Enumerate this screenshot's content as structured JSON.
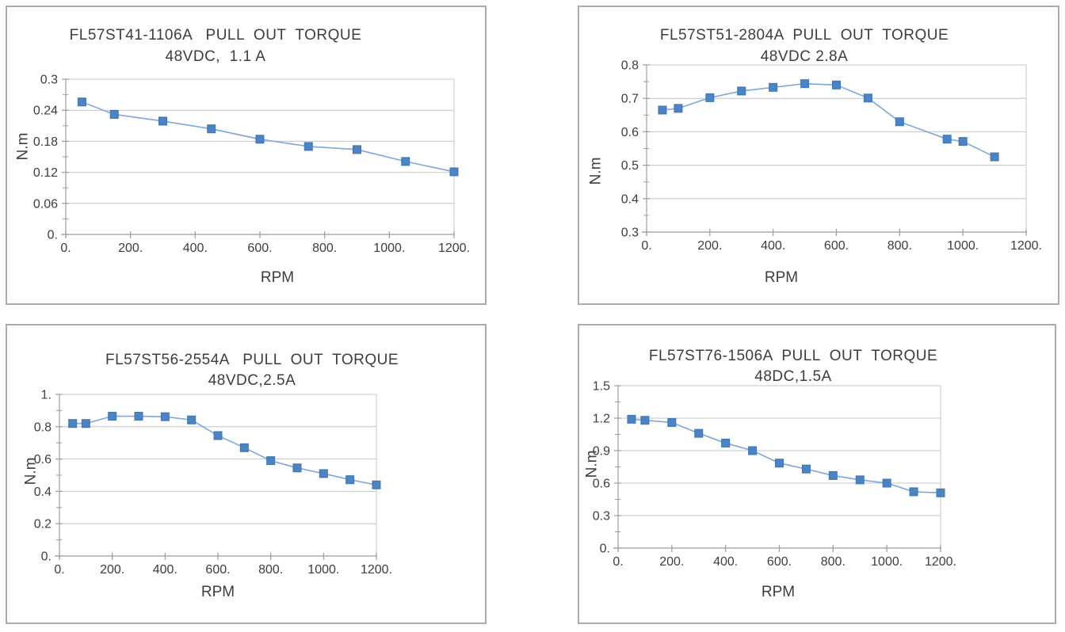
{
  "colors": {
    "line": "#7ca7d9",
    "marker_fill": "#4c83c3",
    "marker_edge": "#3f74b0",
    "grid": "#c4c4c4",
    "axis": "#9c9c9c",
    "text": "#3d3d3d",
    "panel_border": "#ababab",
    "background": "#ffffff"
  },
  "chart_data": [
    {
      "type": "line",
      "title_line1": "FL57ST41-1106A   PULL  OUT  TORQUE",
      "title_line2": "48VDC,  1.1 A",
      "xlabel": "RPM",
      "ylabel": "N.m",
      "xlim": [
        0,
        1200
      ],
      "ylim": [
        0,
        0.3
      ],
      "x_tick_values": [
        0,
        200,
        400,
        600,
        800,
        1000,
        1200
      ],
      "x_tick_labels": [
        "0.",
        "200.",
        "400.",
        "600.",
        "800.",
        "1000.",
        "1200."
      ],
      "y_tick_values": [
        0,
        0.06,
        0.12,
        0.18,
        0.24,
        0.3
      ],
      "y_tick_labels": [
        "0.",
        "0.06",
        "0.12",
        "0.18",
        "0.24",
        "0.3"
      ],
      "y_minor_step": 0.03,
      "x": [
        50,
        150,
        300,
        450,
        600,
        750,
        900,
        1050,
        1200
      ],
      "y": [
        0.256,
        0.232,
        0.219,
        0.204,
        0.184,
        0.17,
        0.164,
        0.141,
        0.121
      ],
      "marker": "square",
      "grid": "horizontal",
      "legend": "none"
    },
    {
      "type": "line",
      "title_line1": "FL57ST51-2804A  PULL  OUT  TORQUE",
      "title_line2": "48VDC 2.8A",
      "xlabel": "RPM",
      "ylabel": "N.m",
      "xlim": [
        0,
        1200
      ],
      "ylim": [
        0.3,
        0.8
      ],
      "x_tick_values": [
        0,
        200,
        400,
        600,
        800,
        1000,
        1200
      ],
      "x_tick_labels": [
        "0.",
        "200.",
        "400.",
        "600.",
        "800.",
        "1000.",
        "1200."
      ],
      "y_tick_values": [
        0.3,
        0.4,
        0.5,
        0.6,
        0.7,
        0.8
      ],
      "y_tick_labels": [
        "0.3",
        "0.4",
        "0.5",
        "0.6",
        "0.7",
        "0.8"
      ],
      "y_minor_step": 0.05,
      "x": [
        50,
        100,
        200,
        300,
        400,
        500,
        600,
        700,
        800,
        950,
        1000,
        1100
      ],
      "y": [
        0.665,
        0.67,
        0.702,
        0.722,
        0.733,
        0.744,
        0.74,
        0.701,
        0.63,
        0.578,
        0.571,
        0.525
      ],
      "marker": "square",
      "grid": "horizontal",
      "legend": "none"
    },
    {
      "type": "line",
      "title_line1": "FL57ST56-2554A   PULL  OUT  TORQUE",
      "title_line2": "48VDC,2.5A",
      "xlabel": "RPM",
      "ylabel": "N.m",
      "xlim": [
        0,
        1200
      ],
      "ylim": [
        0,
        1.0
      ],
      "x_tick_values": [
        0,
        200,
        400,
        600,
        800,
        1000,
        1200
      ],
      "x_tick_labels": [
        "0.",
        "200.",
        "400.",
        "600.",
        "800.",
        "1000.",
        "1200."
      ],
      "y_tick_values": [
        0,
        0.2,
        0.4,
        0.6,
        0.8,
        1.0
      ],
      "y_tick_labels": [
        "0.",
        "0.2",
        "0.4",
        "0.6",
        "0.8",
        "1."
      ],
      "y_minor_step": 0.1,
      "x": [
        50,
        100,
        200,
        300,
        400,
        500,
        600,
        700,
        800,
        900,
        1000,
        1100,
        1200
      ],
      "y": [
        0.82,
        0.82,
        0.865,
        0.865,
        0.862,
        0.842,
        0.745,
        0.67,
        0.59,
        0.545,
        0.51,
        0.472,
        0.44
      ],
      "marker": "square",
      "grid": "horizontal",
      "legend": "none"
    },
    {
      "type": "line",
      "title_line1": "FL57ST76-1506A  PULL  OUT  TORQUE",
      "title_line2": "48DC,1.5A",
      "xlabel": "RPM",
      "ylabel": "N.m",
      "xlim": [
        0,
        1200
      ],
      "ylim": [
        0,
        1.5
      ],
      "x_tick_values": [
        0,
        200,
        400,
        600,
        800,
        1000,
        1200
      ],
      "x_tick_labels": [
        "0.",
        "200.",
        "400.",
        "600.",
        "800.",
        "1000.",
        "1200."
      ],
      "y_tick_values": [
        0,
        0.3,
        0.6,
        0.9,
        1.2,
        1.5
      ],
      "y_tick_labels": [
        "0.",
        "0.3",
        "0.6",
        "0.9",
        "1.2",
        "1.5"
      ],
      "y_minor_step": 0.15,
      "x": [
        50,
        100,
        200,
        300,
        400,
        500,
        600,
        700,
        800,
        900,
        1000,
        1100,
        1200
      ],
      "y": [
        1.19,
        1.18,
        1.16,
        1.06,
        0.97,
        0.9,
        0.785,
        0.73,
        0.67,
        0.63,
        0.6,
        0.52,
        0.51
      ],
      "marker": "square",
      "grid": "horizontal",
      "legend": "none"
    }
  ]
}
